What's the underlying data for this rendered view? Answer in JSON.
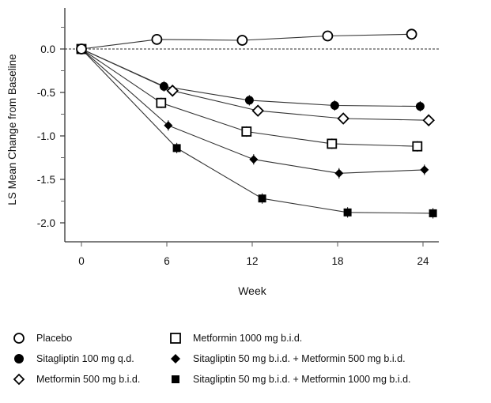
{
  "chart_data": {
    "type": "line",
    "title": "",
    "xlabel": "Week",
    "ylabel": "LS Mean Change from Baseline",
    "xlim": [
      -1.2,
      25.2
    ],
    "ylim": [
      -2.2,
      0.47
    ],
    "xticks": [
      0,
      6,
      12,
      18,
      24
    ],
    "xtick_labels": [
      "0",
      "6",
      "12",
      "18",
      "24"
    ],
    "yticks": [
      0.0,
      -0.5,
      -1.0,
      -1.5,
      -2.0
    ],
    "ytick_labels": [
      "0.0",
      "-0.5",
      "-1.0",
      "-1.5",
      "-2.0"
    ],
    "yminor_ticks": [
      0.25,
      -0.25,
      -0.75,
      -1.25,
      -1.75
    ],
    "reference_line": {
      "y": 0.0,
      "style": "dashed"
    },
    "grid": false,
    "legend_position": "bottom",
    "series": [
      {
        "name": "Placebo",
        "marker": "open-circle",
        "x": [
          0,
          5.3,
          11.3,
          17.3,
          23.2
        ],
        "y": [
          0.0,
          0.11,
          0.1,
          0.15,
          0.17
        ]
      },
      {
        "name": "Sitagliptin 100 mg q.d.",
        "marker": "filled-circle",
        "x": [
          0,
          5.8,
          11.8,
          17.8,
          23.8
        ],
        "y": [
          0.0,
          -0.43,
          -0.59,
          -0.65,
          -0.66
        ]
      },
      {
        "name": "Metformin 500 mg b.i.d.",
        "marker": "open-diamond",
        "x": [
          0,
          6.4,
          12.4,
          18.4,
          24.4
        ],
        "y": [
          0.0,
          -0.48,
          -0.71,
          -0.8,
          -0.82
        ]
      },
      {
        "name": "Metformin 1000 mg b.i.d.",
        "marker": "open-square",
        "x": [
          0,
          5.6,
          11.6,
          17.6,
          23.6
        ],
        "y": [
          0.0,
          -0.62,
          -0.95,
          -1.09,
          -1.12
        ]
      },
      {
        "name": "Sitagliptin 50 mg b.i.d. + Metformin 500 mg b.i.d.",
        "marker": "filled-diamond",
        "x": [
          0,
          6.1,
          12.1,
          18.1,
          24.1
        ],
        "y": [
          0.0,
          -0.88,
          -1.27,
          -1.43,
          -1.39
        ]
      },
      {
        "name": "Sitagliptin 50 mg b.i.d. + Metformin 1000 mg b.i.d.",
        "marker": "filled-square",
        "x": [
          0,
          6.7,
          12.7,
          18.7,
          24.7
        ],
        "y": [
          0.0,
          -1.14,
          -1.72,
          -1.88,
          -1.89
        ]
      }
    ],
    "error_bar_halfwidth": 0.06
  },
  "legend": {
    "items": [
      {
        "label": "Placebo",
        "marker": "open-circle"
      },
      {
        "label": "Sitagliptin 100 mg q.d.",
        "marker": "filled-circle"
      },
      {
        "label": "Metformin 500 mg b.i.d.",
        "marker": "open-diamond"
      },
      {
        "label": "Metformin 1000 mg b.i.d.",
        "marker": "open-square"
      },
      {
        "label": "Sitagliptin 50 mg b.i.d. + Metformin 500 mg b.i.d.",
        "marker": "filled-diamond"
      },
      {
        "label": "Sitagliptin 50 mg b.i.d. + Metformin 1000 mg b.i.d.",
        "marker": "filled-square"
      }
    ]
  },
  "colors": {
    "ink": "#000000",
    "line": "#333333",
    "axis": "#333333",
    "ref": "#555555"
  }
}
